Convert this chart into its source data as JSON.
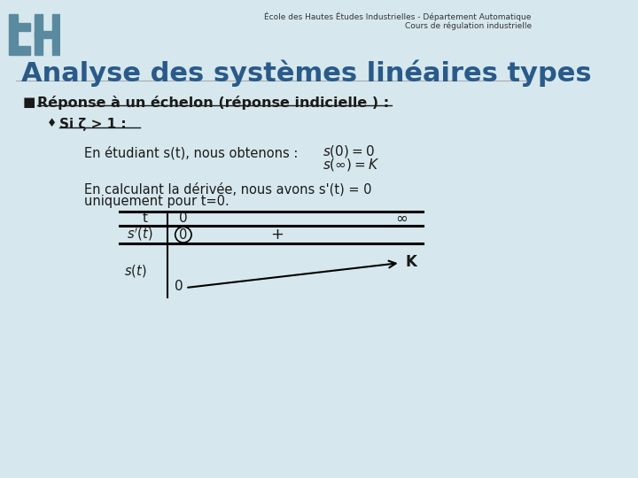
{
  "bg_color": "#d6e8ed",
  "header_line1": "École des Hautes Études Industrielles - Département Automatique",
  "header_line2": "Cours de régulation industrielle",
  "logo_color": "#5a8a9f",
  "title": "Analyse des systèmes linéaires types",
  "title_color": "#2a5a8a",
  "bullet1": "Réponse à un échelon (réponse indicielle ) :",
  "bullet2": "Si ζ > 1 :",
  "text1": "En étudiant s(t), nous obtenons :",
  "math1": "$s(0)=0$",
  "math2": "$s(\\infty)=K$",
  "text2": "En calculant la dérivée, nous avons s'(t) = 0",
  "text3": "uniquement pour t=0.",
  "table_t": "t",
  "table_0": "0",
  "table_inf": "∞",
  "table_sprime": "$s'(t)$",
  "table_val0": "0",
  "table_plus": "+",
  "table_s": "$s(t)$",
  "table_sval0": "0",
  "table_K": "K",
  "text_color": "#1a1a1a",
  "header_color": "#333333"
}
